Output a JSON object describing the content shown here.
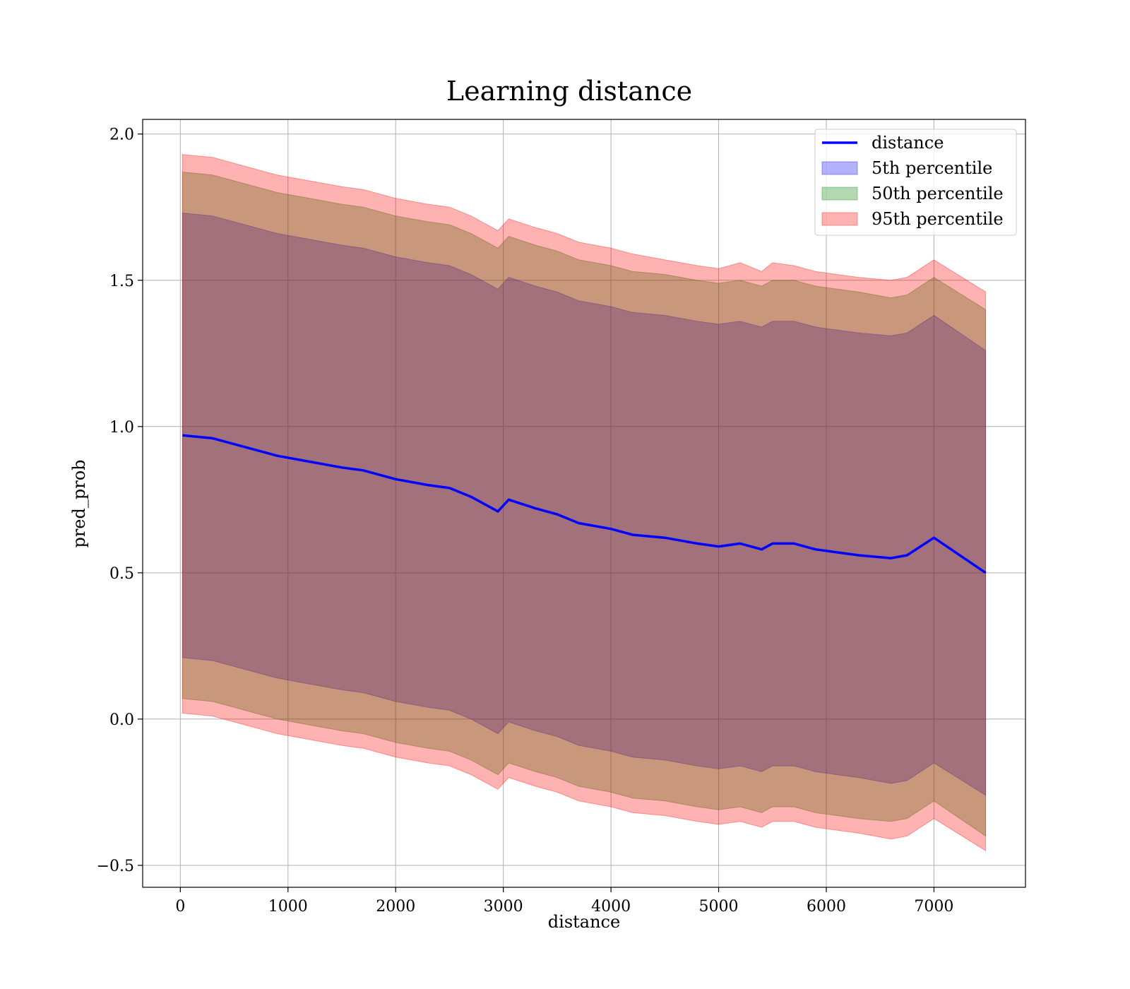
{
  "chart_data": {
    "type": "area",
    "title": "Learning distance",
    "xlabel": "distance",
    "ylabel": "pred_prob",
    "xlim": [
      -350,
      7850
    ],
    "ylim": [
      -0.575,
      2.05
    ],
    "xticks": [
      0,
      1000,
      2000,
      3000,
      4000,
      5000,
      6000,
      7000
    ],
    "yticks": [
      -0.5,
      0.0,
      0.5,
      1.0,
      1.5,
      2.0
    ],
    "xtick_labels": [
      "0",
      "1000",
      "2000",
      "3000",
      "4000",
      "5000",
      "6000",
      "7000"
    ],
    "ytick_labels": [
      "−0.5",
      "0.0",
      "0.5",
      "1.0",
      "1.5",
      "2.0"
    ],
    "grid": true,
    "legend_position": "top-right",
    "x": [
      20,
      300,
      600,
      900,
      1200,
      1500,
      1700,
      2000,
      2300,
      2500,
      2700,
      2950,
      3050,
      3300,
      3500,
      3700,
      4000,
      4200,
      4500,
      4800,
      5000,
      5200,
      5400,
      5500,
      5700,
      5900,
      6100,
      6300,
      6600,
      6750,
      7000,
      7480
    ],
    "series": [
      {
        "name": "distance",
        "kind": "line",
        "color": "#0000ff",
        "values": [
          0.97,
          0.96,
          0.93,
          0.9,
          0.88,
          0.86,
          0.85,
          0.82,
          0.8,
          0.79,
          0.76,
          0.71,
          0.75,
          0.72,
          0.7,
          0.67,
          0.65,
          0.63,
          0.62,
          0.6,
          0.59,
          0.6,
          0.58,
          0.6,
          0.6,
          0.58,
          0.57,
          0.56,
          0.55,
          0.56,
          0.62,
          0.5
        ]
      },
      {
        "name": "5th percentile",
        "kind": "band",
        "color": "#0000ff",
        "lower": [
          0.21,
          0.2,
          0.17,
          0.14,
          0.12,
          0.1,
          0.09,
          0.06,
          0.04,
          0.03,
          0.0,
          -0.05,
          -0.01,
          -0.04,
          -0.06,
          -0.09,
          -0.11,
          -0.13,
          -0.14,
          -0.16,
          -0.17,
          -0.16,
          -0.18,
          -0.16,
          -0.16,
          -0.18,
          -0.19,
          -0.2,
          -0.22,
          -0.21,
          -0.15,
          -0.26
        ],
        "upper": [
          1.73,
          1.72,
          1.69,
          1.66,
          1.64,
          1.62,
          1.61,
          1.58,
          1.56,
          1.55,
          1.52,
          1.47,
          1.51,
          1.48,
          1.46,
          1.43,
          1.41,
          1.39,
          1.38,
          1.36,
          1.35,
          1.36,
          1.34,
          1.36,
          1.36,
          1.34,
          1.33,
          1.32,
          1.31,
          1.32,
          1.38,
          1.26
        ]
      },
      {
        "name": "50th percentile",
        "kind": "band",
        "color": "#008000",
        "lower": [
          0.07,
          0.06,
          0.03,
          0.0,
          -0.02,
          -0.04,
          -0.05,
          -0.08,
          -0.1,
          -0.11,
          -0.14,
          -0.19,
          -0.15,
          -0.18,
          -0.2,
          -0.23,
          -0.25,
          -0.27,
          -0.28,
          -0.3,
          -0.31,
          -0.3,
          -0.32,
          -0.3,
          -0.3,
          -0.32,
          -0.33,
          -0.34,
          -0.35,
          -0.34,
          -0.28,
          -0.4
        ],
        "upper": [
          1.87,
          1.86,
          1.83,
          1.8,
          1.78,
          1.76,
          1.75,
          1.72,
          1.7,
          1.69,
          1.66,
          1.61,
          1.65,
          1.62,
          1.6,
          1.57,
          1.55,
          1.53,
          1.52,
          1.5,
          1.49,
          1.5,
          1.48,
          1.5,
          1.5,
          1.48,
          1.47,
          1.46,
          1.44,
          1.45,
          1.51,
          1.4
        ]
      },
      {
        "name": "95th percentile",
        "kind": "band",
        "color": "#ff0000",
        "lower": [
          0.02,
          0.01,
          -0.02,
          -0.05,
          -0.07,
          -0.09,
          -0.1,
          -0.13,
          -0.15,
          -0.16,
          -0.19,
          -0.24,
          -0.2,
          -0.23,
          -0.25,
          -0.28,
          -0.3,
          -0.32,
          -0.33,
          -0.35,
          -0.36,
          -0.35,
          -0.37,
          -0.35,
          -0.35,
          -0.37,
          -0.38,
          -0.39,
          -0.41,
          -0.4,
          -0.34,
          -0.45
        ],
        "upper": [
          1.93,
          1.92,
          1.89,
          1.86,
          1.84,
          1.82,
          1.81,
          1.78,
          1.76,
          1.75,
          1.72,
          1.67,
          1.71,
          1.68,
          1.66,
          1.63,
          1.61,
          1.59,
          1.57,
          1.55,
          1.54,
          1.56,
          1.53,
          1.56,
          1.55,
          1.53,
          1.52,
          1.51,
          1.5,
          1.51,
          1.57,
          1.46
        ]
      }
    ]
  }
}
